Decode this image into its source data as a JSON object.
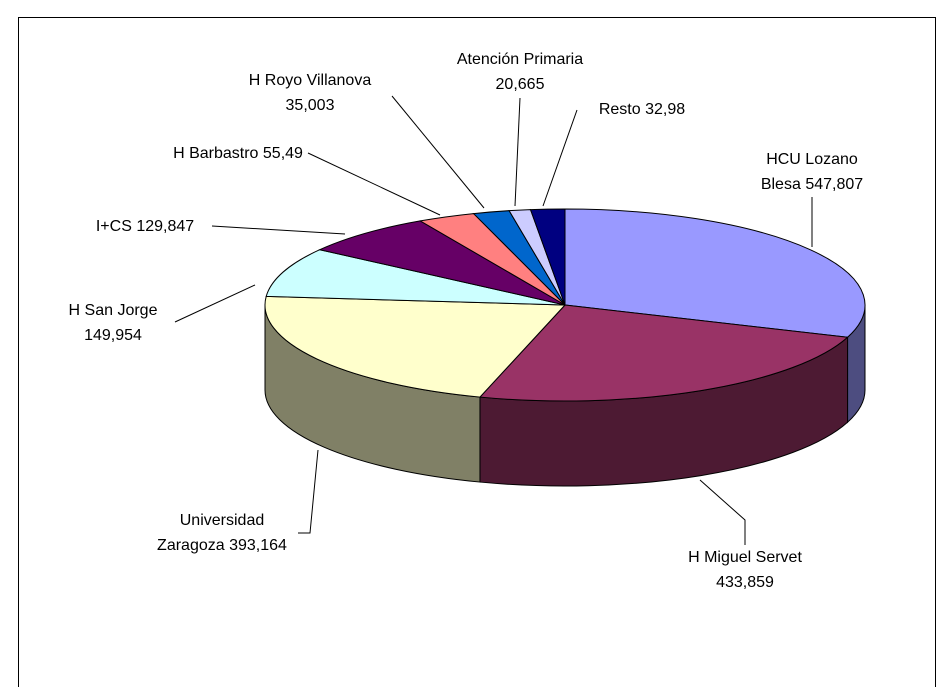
{
  "chart_data": {
    "type": "pie",
    "categories": [
      "HCU Lozano Blesa",
      "H Miguel Servet",
      "Universidad Zaragoza",
      "H San Jorge",
      "I+CS",
      "H Barbastro",
      "H Royo Villanova",
      "Atención Primaria",
      "Resto"
    ],
    "values": [
      547.807,
      433.859,
      393.164,
      149.954,
      129.847,
      55.49,
      35.003,
      20.665,
      32.98
    ],
    "value_labels": [
      "547,807",
      "433,859",
      "393,164",
      "149,954",
      "129,847",
      "55,49",
      "35,003",
      "20,665",
      "32,98"
    ],
    "colors": [
      "#9999ff",
      "#993366",
      "#ffffcc",
      "#ccffff",
      "#660066",
      "#ff8080",
      "#0066cc",
      "#ccccff",
      "#000080"
    ]
  }
}
